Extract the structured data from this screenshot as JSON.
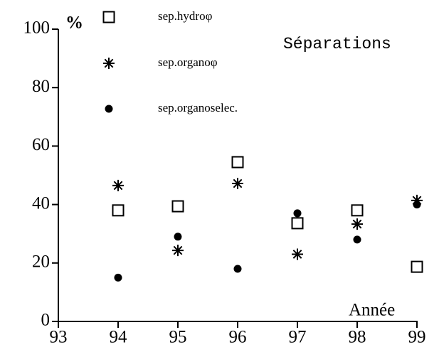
{
  "chart_data": {
    "type": "scatter",
    "title": "Séparations",
    "y_label": "%",
    "x_label": "Année",
    "x": [
      94,
      95,
      96,
      97,
      98,
      99
    ],
    "series": [
      {
        "name": "sep.hydroφ",
        "color": "#000000",
        "marker": "square",
        "values": [
          38,
          39.4,
          54.5,
          33.6,
          38,
          18.7
        ]
      },
      {
        "name": "sep.organoφ",
        "color": "#000000",
        "marker": "star",
        "values": [
          46.5,
          24.3,
          47.2,
          23,
          33.3,
          41.4
        ]
      },
      {
        "name": "sep.organoselec.",
        "color": "#000000",
        "marker": "circle",
        "values": [
          15,
          29,
          18,
          37,
          28,
          40
        ]
      }
    ],
    "xlim": [
      93,
      99
    ],
    "xticks": [
      93,
      94,
      95,
      96,
      97,
      98,
      99
    ],
    "ylim": [
      0,
      100
    ],
    "yticks": [
      0,
      20,
      40,
      60,
      80,
      100
    ],
    "grid": false
  }
}
